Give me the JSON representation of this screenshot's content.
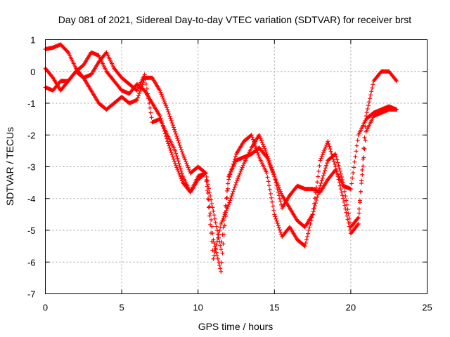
{
  "chart_data": {
    "type": "scatter",
    "title": "Day 081 of 2021, Sidereal Day-to-day VTEC variation (SDTVAR) for receiver brst",
    "xlabel": "GPS time / hours",
    "ylabel": "SDTVAR / TECUs",
    "xlim": [
      0,
      25
    ],
    "ylim": [
      -7,
      1
    ],
    "xticks": [
      0,
      5,
      10,
      15,
      20,
      25
    ],
    "yticks": [
      -7,
      -6,
      -5,
      -4,
      -3,
      -2,
      -1,
      0,
      1
    ],
    "grid": true,
    "marker": "+",
    "color": "#ff0000",
    "series": [
      {
        "x": [
          0.0,
          0.5,
          1.0,
          1.5,
          2.0,
          2.5,
          3.0,
          3.5,
          4.0,
          4.5,
          5.0,
          5.5,
          6.0,
          6.5,
          7.0,
          7.5,
          8.0,
          8.5,
          9.0,
          9.5,
          10.0,
          10.5,
          11.0,
          11.5,
          12.0,
          12.5,
          13.0,
          13.5,
          14.0,
          14.5,
          15.0,
          15.5,
          16.0,
          16.5,
          17.0,
          17.5,
          18.0,
          18.5,
          19.0,
          19.5,
          20.0,
          20.5,
          21.0,
          21.5,
          22.0,
          22.5,
          23.0
        ],
        "values": [
          0.7,
          0.75,
          0.85,
          0.6,
          0.1,
          -0.2,
          -0.1,
          0.3,
          0.6,
          0.1,
          -0.2,
          -0.4,
          -0.6,
          -0.1,
          -1.6,
          -1.5,
          -2.0,
          -2.5,
          -3.3,
          -3.8,
          -3.4,
          -3.2,
          -5.9,
          -4.8,
          -4.2,
          -3.5,
          -2.9,
          -2.4,
          -2.0,
          -2.6,
          -3.3,
          -4.3,
          -3.9,
          -3.6,
          -3.7,
          -3.7,
          -3.8,
          -3.4,
          -3.1,
          -3.6,
          -3.7,
          -2.0,
          -1.5,
          -1.3,
          -1.2,
          -1.1,
          -1.2
        ]
      },
      {
        "x": [
          0.0,
          0.5,
          1.0,
          1.5,
          2.0,
          2.5,
          3.0,
          3.5,
          4.0,
          4.5,
          5.0,
          5.5,
          6.0,
          6.5,
          7.0,
          7.5,
          8.0,
          8.5,
          9.0,
          9.5,
          10.0,
          10.5,
          11.0,
          11.5,
          12.0,
          12.5,
          13.0,
          13.5,
          14.0,
          14.5,
          15.0,
          15.5,
          16.0,
          16.5,
          17.0,
          17.5,
          18.0,
          18.5,
          19.0,
          19.5,
          20.0,
          20.5,
          21.0,
          21.5,
          22.0,
          22.5,
          23.0
        ],
        "values": [
          0.1,
          -0.2,
          -0.6,
          -0.3,
          0.0,
          0.2,
          0.6,
          0.5,
          0.0,
          -0.3,
          -0.6,
          -0.7,
          -0.4,
          -0.6,
          -1.0,
          -1.4,
          -2.2,
          -2.9,
          -3.5,
          -3.8,
          -3.3,
          -3.2,
          -4.4,
          -5.6,
          -3.3,
          -2.8,
          -2.7,
          -2.6,
          -2.4,
          -2.7,
          -3.3,
          -3.9,
          -4.3,
          -4.7,
          -4.9,
          -4.5,
          -3.6,
          -2.8,
          -2.6,
          -3.5,
          -4.9,
          -4.6,
          -1.9,
          -1.4,
          -1.3,
          -1.2,
          -1.2
        ]
      },
      {
        "x": [
          0.0,
          0.5,
          1.0,
          1.5,
          2.0,
          2.5,
          3.0,
          3.5,
          4.0,
          4.5,
          5.0,
          5.5,
          6.0,
          6.5,
          7.0,
          7.5,
          8.0,
          8.5,
          9.0,
          9.5,
          10.0,
          10.5,
          11.0,
          11.5,
          12.0,
          12.5,
          13.0,
          13.5,
          14.0,
          14.5,
          15.0,
          15.5,
          16.0,
          16.5,
          17.0,
          17.5,
          18.0,
          18.5,
          19.0,
          19.5,
          20.0,
          20.5,
          21.0,
          21.5,
          22.0,
          22.5,
          23.0
        ],
        "values": [
          -0.5,
          -0.6,
          -0.3,
          -0.3,
          0.0,
          -0.2,
          -0.6,
          -1.0,
          -1.2,
          -1.0,
          -0.8,
          -1.0,
          -0.9,
          -0.2,
          -0.2,
          -0.6,
          -1.2,
          -1.9,
          -2.6,
          -3.2,
          -3.0,
          -3.2,
          -5.3,
          -6.3,
          -3.4,
          -2.6,
          -2.2,
          -2.0,
          -2.7,
          -3.2,
          -4.5,
          -5.2,
          -4.9,
          -5.3,
          -5.5,
          -4.5,
          -2.8,
          -2.2,
          -3.0,
          -4.0,
          -5.1,
          -4.8,
          -1.4,
          -0.3,
          0.0,
          0.0,
          -0.3
        ]
      }
    ]
  }
}
